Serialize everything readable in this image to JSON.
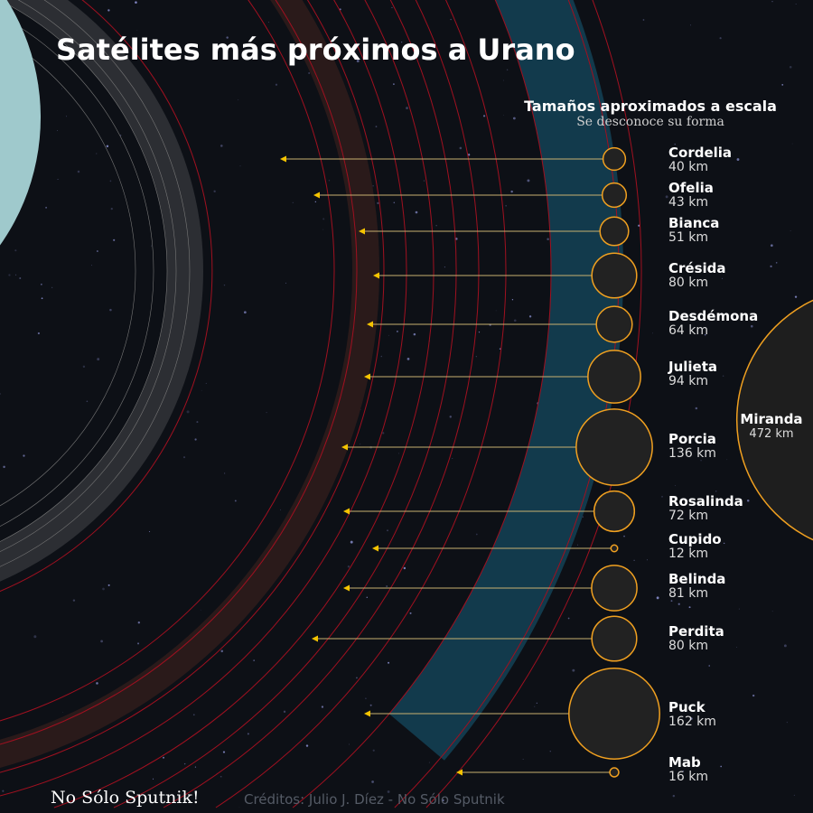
{
  "title": "Satélites más próximos a Urano",
  "header": {
    "line1": "Tamaños aproximados a escala",
    "line2": "Se desconoce su forma"
  },
  "moons": [
    {
      "name": "Cordelia",
      "size": "40 km",
      "km": 40
    },
    {
      "name": "Ofelia",
      "size": "43 km",
      "km": 43
    },
    {
      "name": "Bianca",
      "size": "51 km",
      "km": 51
    },
    {
      "name": "Crésida",
      "size": "80 km",
      "km": 80
    },
    {
      "name": "Desdémona",
      "size": "64 km",
      "km": 64
    },
    {
      "name": "Julieta",
      "size": "94 km",
      "km": 94
    },
    {
      "name": "Porcia",
      "size": "136 km",
      "km": 136
    },
    {
      "name": "Rosalinda",
      "size": "72 km",
      "km": 72
    },
    {
      "name": "Cupido",
      "size": "12 km",
      "km": 12
    },
    {
      "name": "Belinda",
      "size": "81 km",
      "km": 81
    },
    {
      "name": "Perdita",
      "size": "80 km",
      "km": 80
    },
    {
      "name": "Puck",
      "size": "162 km",
      "km": 162
    },
    {
      "name": "Mab",
      "size": "16 km",
      "km": 16
    }
  ],
  "miranda": {
    "name": "Miranda",
    "size": "472 km",
    "km": 472
  },
  "colors": {
    "moon_outline": "#f0a020",
    "moon_fill": "#222222",
    "arrow": "#f5c400",
    "ring": "#a01020",
    "band": "#123a4c"
  },
  "footer": {
    "logo": "No Sólo Sputnik!",
    "credits": "Créditos: Julio J. Díez - No Sólo Sputnik"
  }
}
